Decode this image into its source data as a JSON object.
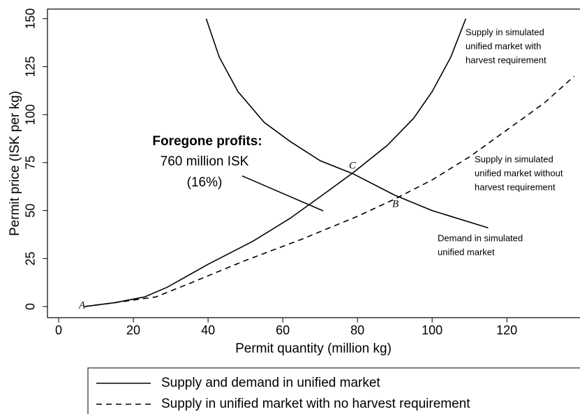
{
  "chart_data": {
    "type": "line",
    "x_label": "Permit quantity (million kg)",
    "y_label": "Permit price (ISK per kg)",
    "xlim": [
      -3,
      139.4
    ],
    "ylim": [
      -5.8,
      155
    ],
    "xticks": [
      0,
      20,
      40,
      60,
      80,
      100,
      120
    ],
    "yticks": [
      0,
      25,
      50,
      75,
      100,
      125,
      150
    ],
    "series": [
      {
        "color": "#000000",
        "dashed": false,
        "x": [
          7,
          15,
          23,
          29,
          40,
          52,
          62,
          72,
          79,
          88,
          95,
          100,
          105,
          109
        ],
        "y": [
          0,
          2,
          5,
          10,
          22,
          34,
          46,
          60,
          70,
          84,
          98,
          112,
          130,
          150
        ]
      },
      {
        "color": "#000000",
        "dashed": false,
        "x": [
          39.5,
          43,
          48,
          55,
          62,
          70,
          79,
          90,
          100,
          115
        ],
        "y": [
          150,
          130,
          112,
          96,
          86,
          76,
          69,
          58,
          50,
          41
        ]
      },
      {
        "color": "#000000",
        "dashed": true,
        "x": [
          7,
          15,
          26,
          35,
          50,
          65,
          80,
          90,
          100,
          110,
          120,
          130,
          138
        ],
        "y": [
          0,
          2,
          5,
          12,
          24,
          35,
          47,
          56,
          66,
          78,
          92,
          106,
          120
        ]
      }
    ],
    "annotations": {
      "foregone_title": "Foregone profits:",
      "foregone_amount": "760 million ISK",
      "foregone_share": "(16%)",
      "supply_with": [
        "Supply in simulated",
        "unified market with",
        "harvest requirement"
      ],
      "supply_without": [
        "Supply in simulated",
        "unified market without",
        "harvest requirement"
      ],
      "demand": [
        "Demand in simulated",
        "unified market"
      ],
      "point_a": "A",
      "point_b": "B",
      "point_c": "C"
    },
    "legend": {
      "entries": [
        {
          "label": "Supply and demand in unified market",
          "dashed": false
        },
        {
          "label": "Supply in unified market with no harvest requirement",
          "dashed": true
        }
      ]
    }
  }
}
